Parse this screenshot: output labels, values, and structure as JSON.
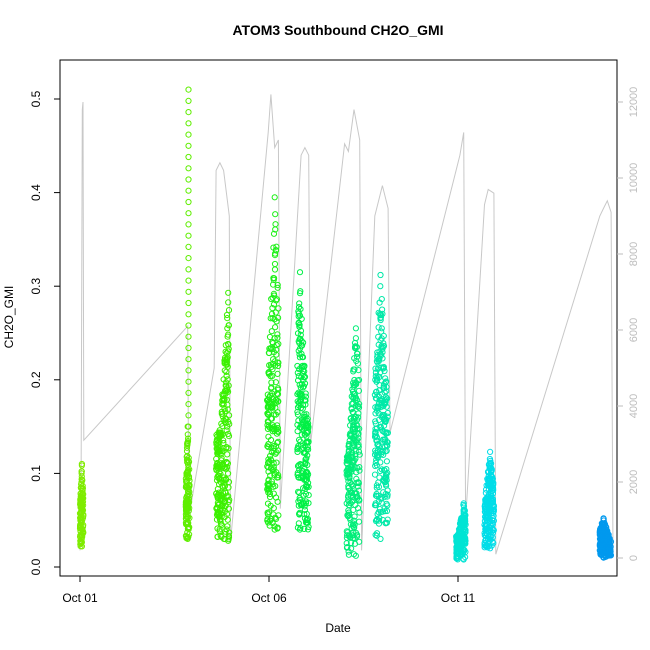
{
  "chart_data": {
    "type": "scatter",
    "title": "ATOM3 Southbound CH2O_GMI",
    "xlabel": "Date",
    "ylabel": "CH2O_GMI",
    "x_unit": "days in October (day 1 = Oct 01)",
    "xlim": [
      0.9,
      15.9
    ],
    "ylim": [
      0,
      0.54
    ],
    "x_ticks": [
      {
        "value": 1,
        "label": "Oct 01"
      },
      {
        "value": 6,
        "label": "Oct 06"
      },
      {
        "value": 11,
        "label": "Oct 11"
      }
    ],
    "y_ticks": [
      0.0,
      0.1,
      0.2,
      0.3,
      0.4,
      0.5
    ],
    "y_tick_labels": [
      "0.0",
      "0.1",
      "0.2",
      "0.3",
      "0.4",
      "0.5"
    ],
    "secondary_axis": {
      "side": "right",
      "ylim": [
        0,
        12400
      ],
      "ticks": [
        0,
        2000,
        4000,
        6000,
        8000,
        10000,
        12000
      ],
      "tick_labels": [
        "0",
        "2000",
        "4000",
        "6000",
        "8000",
        "10000",
        "12000"
      ],
      "color": "#bdbdbd"
    },
    "grid": false,
    "marker": "open circle",
    "flights": [
      {
        "x": [
          1.0,
          1.09
        ],
        "ymin": 0.022,
        "ymax": 0.11,
        "peak_x": 1.05,
        "color": "#7fec00"
      },
      {
        "x": [
          3.8,
          3.9
        ],
        "ymin": 0.03,
        "ymax": 0.15,
        "spike_x": 3.87,
        "spike_max": 0.52,
        "color": "#5fee00"
      },
      {
        "x": [
          4.6,
          4.95
        ],
        "ymin": 0.028,
        "ymax": 0.293,
        "peak_x": 4.92,
        "color": "#3cf000"
      },
      {
        "x": [
          5.95,
          6.25
        ],
        "ymin": 0.04,
        "ymax": 0.395,
        "peak_x": 6.15,
        "color": "#1df018"
      },
      {
        "x": [
          6.75,
          7.05
        ],
        "ymin": 0.04,
        "ymax": 0.315,
        "peak_x": 6.82,
        "color": "#00f045"
      },
      {
        "x": [
          8.05,
          8.4
        ],
        "ymin": 0.012,
        "ymax": 0.255,
        "peak_x": 8.3,
        "color": "#00ee78"
      },
      {
        "x": [
          8.8,
          9.15
        ],
        "ymin": 0.03,
        "ymax": 0.312,
        "peak_x": 8.95,
        "color": "#00e9a8"
      },
      {
        "x": [
          10.95,
          11.2
        ],
        "ymin": 0.008,
        "ymax": 0.068,
        "peak_x": 11.15,
        "color": "#00e4d4"
      },
      {
        "x": [
          11.7,
          11.95
        ],
        "ymin": 0.02,
        "ymax": 0.123,
        "peak_x": 11.85,
        "color": "#00dde8"
      },
      {
        "x": [
          14.75,
          15.05
        ],
        "ymin": 0.01,
        "ymax": 0.052,
        "peak_x": 14.85,
        "color": "#0099ee"
      }
    ],
    "altitude_trace": {
      "color": "#c8c8c8",
      "points": [
        [
          1.0,
          200
        ],
        [
          1.03,
          2000
        ],
        [
          1.06,
          11800
        ],
        [
          1.08,
          12000
        ],
        [
          1.1,
          3100
        ],
        [
          3.85,
          6100
        ],
        [
          3.88,
          800
        ],
        [
          3.92,
          1300
        ],
        [
          4.55,
          5000
        ],
        [
          4.6,
          10200
        ],
        [
          4.7,
          10400
        ],
        [
          4.8,
          10200
        ],
        [
          4.95,
          9000
        ],
        [
          4.98,
          400
        ],
        [
          5.98,
          11200
        ],
        [
          6.05,
          12200
        ],
        [
          6.15,
          10800
        ],
        [
          6.25,
          11000
        ],
        [
          6.3,
          1300
        ],
        [
          6.85,
          10600
        ],
        [
          6.95,
          10800
        ],
        [
          7.05,
          10600
        ],
        [
          7.1,
          3000
        ],
        [
          8.0,
          10900
        ],
        [
          8.1,
          10700
        ],
        [
          8.25,
          11800
        ],
        [
          8.4,
          11000
        ],
        [
          8.45,
          200
        ],
        [
          8.8,
          9000
        ],
        [
          9.0,
          9800
        ],
        [
          9.15,
          9200
        ],
        [
          9.2,
          3300
        ],
        [
          10.95,
          10200
        ],
        [
          11.05,
          10600
        ],
        [
          11.15,
          11200
        ],
        [
          11.2,
          1000
        ],
        [
          11.7,
          9300
        ],
        [
          11.8,
          9700
        ],
        [
          11.95,
          9600
        ],
        [
          12.0,
          100
        ],
        [
          14.75,
          9000
        ],
        [
          14.85,
          9200
        ],
        [
          14.95,
          9400
        ],
        [
          15.05,
          9100
        ],
        [
          15.1,
          100
        ]
      ]
    }
  }
}
